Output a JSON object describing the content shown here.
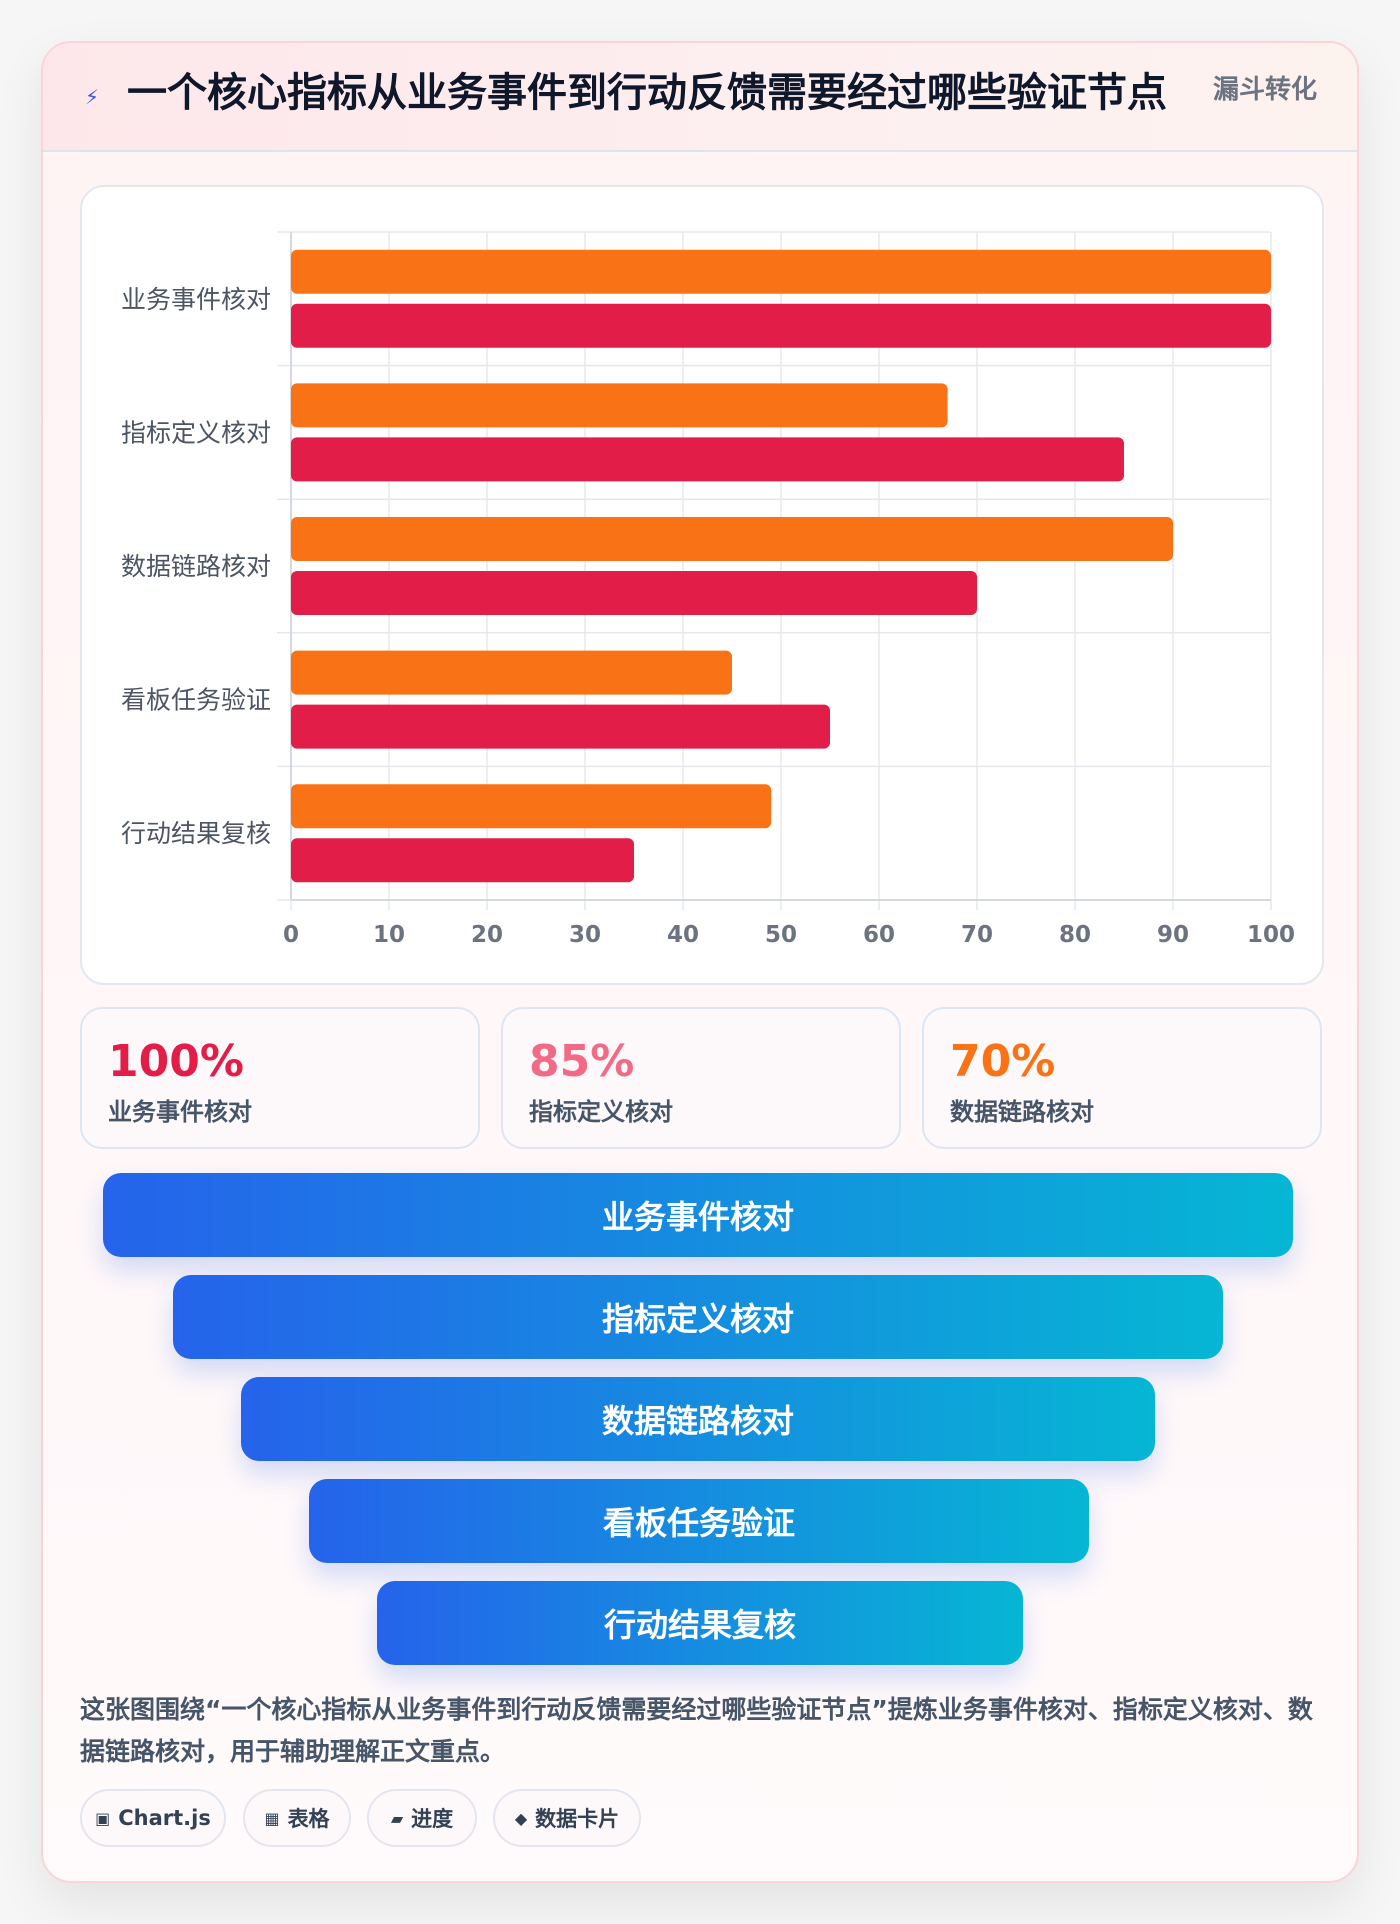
{
  "header": {
    "icon": "lightning-icon",
    "title": "一个核心指标从业务事件到行动反馈需要经过哪些验证节点",
    "tag": "漏斗转化"
  },
  "colors": {
    "series_a": "#f97316",
    "series_b": "#e11d48",
    "funnel_start": "#2563eb",
    "funnel_end": "#06b6d4"
  },
  "chart_data": {
    "type": "bar",
    "orientation": "horizontal",
    "categories": [
      "业务事件核对",
      "指标定义核对",
      "数据链路核对",
      "看板任务验证",
      "行动结果复核"
    ],
    "series": [
      {
        "values": [
          100,
          67,
          90,
          45,
          49
        ]
      },
      {
        "values": [
          100,
          85,
          70,
          55,
          35
        ]
      }
    ],
    "xlim": [
      0,
      100
    ],
    "xticks": [
      0,
      10,
      20,
      30,
      40,
      50,
      60,
      70,
      80,
      90,
      100
    ],
    "grid": true,
    "legend": "none"
  },
  "kpis": [
    {
      "value": "100%",
      "label": "业务事件核对",
      "color": "#e11d48"
    },
    {
      "value": "85%",
      "label": "指标定义核对",
      "color": "#f26b86"
    },
    {
      "value": "70%",
      "label": "数据链路核对",
      "color": "#f97316"
    }
  ],
  "funnel": [
    "业务事件核对",
    "指标定义核对",
    "数据链路核对",
    "看板任务验证",
    "行动结果复核"
  ],
  "description": "这张图围绕“一个核心指标从业务事件到行动反馈需要经过哪些验证节点”提炼业务事件核对、指标定义核对、数据链路核对，用于辅助理解正文重点。",
  "pills": [
    {
      "icon": "▣",
      "label": "Chart.js"
    },
    {
      "icon": "▦",
      "label": "表格"
    },
    {
      "icon": "▰",
      "label": "进度"
    },
    {
      "icon": "◆",
      "label": "数据卡片"
    }
  ]
}
